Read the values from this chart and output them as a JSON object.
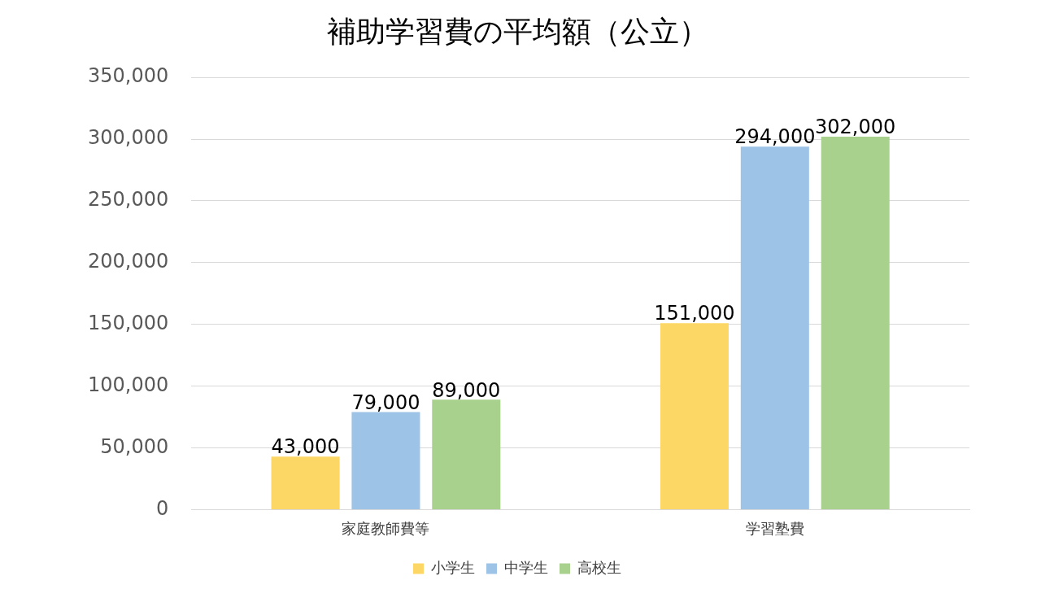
{
  "chart_data": {
    "type": "bar",
    "title": "補助学習費の平均額（公立）",
    "categories": [
      "家庭教師費等",
      "学習塾費"
    ],
    "series": [
      {
        "name": "小学生",
        "color": "#fdd766",
        "values": [
          43000,
          151000
        ],
        "value_labels": [
          "43,000",
          "151,000"
        ]
      },
      {
        "name": "中学生",
        "color": "#9dc3e6",
        "values": [
          79000,
          294000
        ],
        "value_labels": [
          "79,000",
          "294,000"
        ]
      },
      {
        "name": "高校生",
        "color": "#a9d18e",
        "values": [
          89000,
          302000
        ],
        "value_labels": [
          "89,000",
          "302,000"
        ]
      }
    ],
    "ylim": [
      0,
      350000
    ],
    "yticks": [
      0,
      {
        "value": 50000,
        "label": "50,000"
      },
      {
        "value": 100000,
        "label": "100,000"
      },
      {
        "value": 150000,
        "label": "150,000"
      },
      {
        "value": 200000,
        "label": "200,000"
      },
      {
        "value": 250000,
        "label": "250,000"
      },
      {
        "value": 300000,
        "label": "300,000"
      },
      {
        "value": 350000,
        "label": "350,000"
      }
    ],
    "grid": "y",
    "legend": "bottom"
  }
}
